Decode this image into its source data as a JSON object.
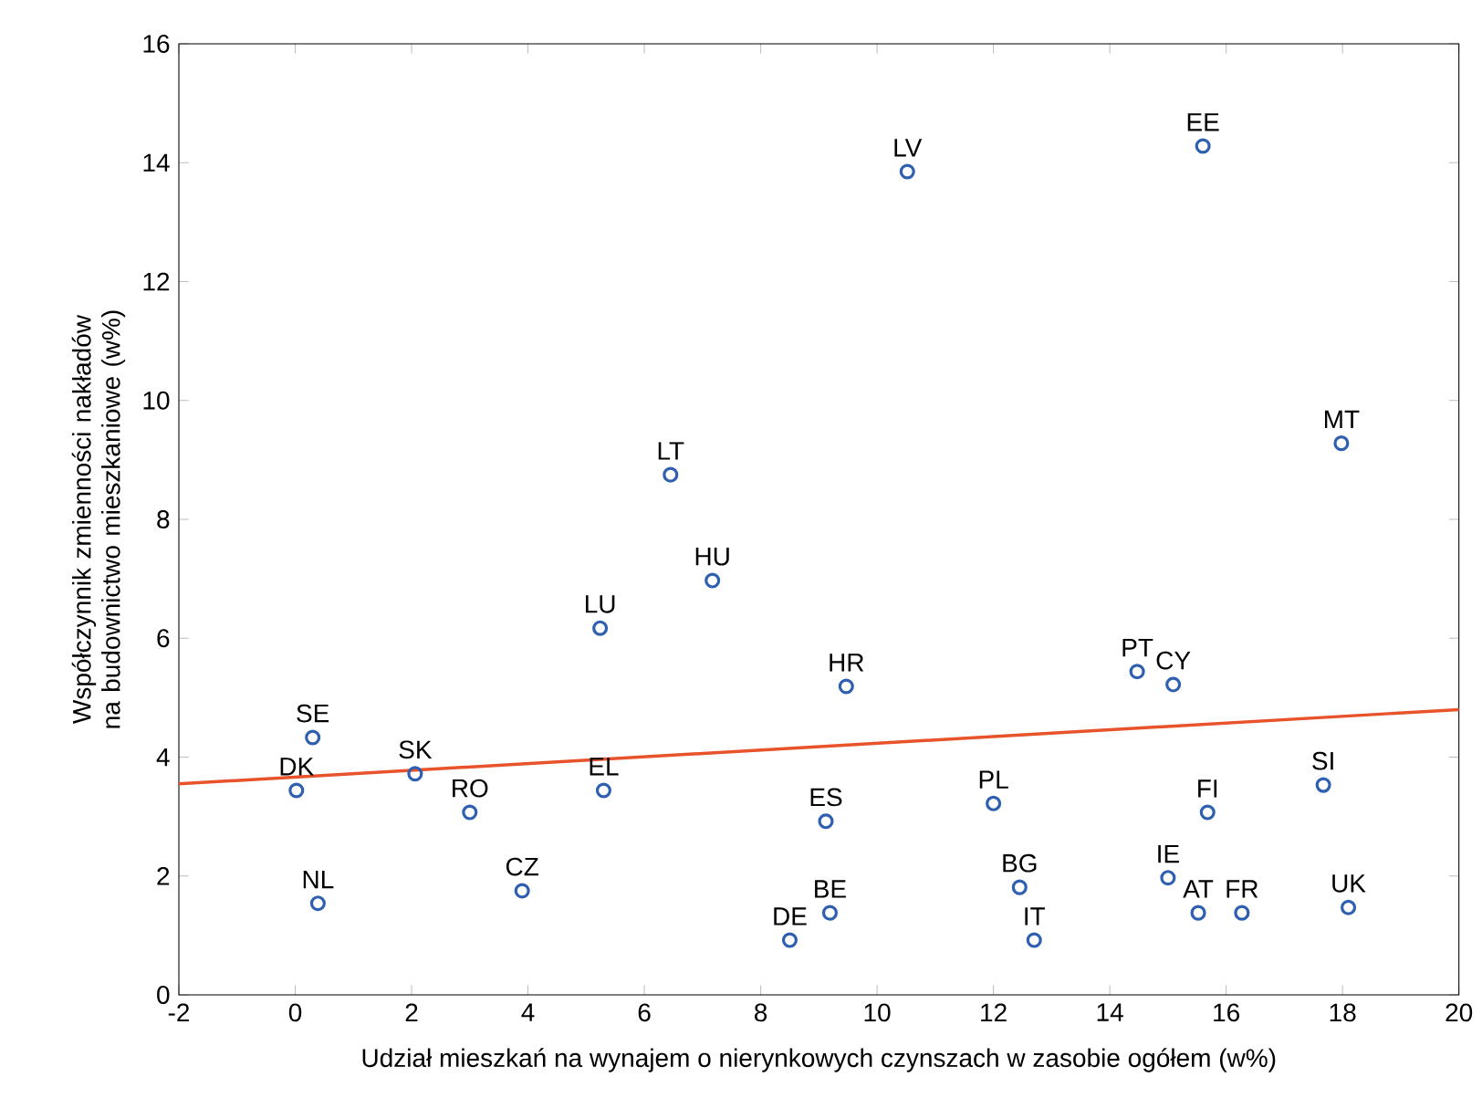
{
  "chart_data": {
    "type": "scatter",
    "xlabel": "Udział mieszkań na wynajem o nierynkowych czynszach w zasobie ogółem (w%)",
    "ylabel": "Współczynnik zmienności nakładów na budownictwo mieszkaniowe (w%)",
    "xlim": [
      -2,
      20
    ],
    "xticks": [
      -2,
      0,
      2,
      4,
      6,
      8,
      10,
      12,
      14,
      16,
      18,
      20
    ],
    "ylim": [
      0,
      16
    ],
    "yticks": [
      0,
      2,
      4,
      6,
      8,
      10,
      12,
      14,
      16
    ],
    "marker": "circle",
    "series": [
      {
        "color": "#2e5fb0",
        "x": [
          0.3,
          0.02,
          0.39,
          2.06,
          3.0,
          3.9,
          5.24,
          5.3,
          6.45,
          7.17,
          8.5,
          9.19,
          9.12,
          9.47,
          10.52,
          12.0,
          12.45,
          12.7,
          14.47,
          15.09,
          15.0,
          15.52,
          15.68,
          15.6,
          16.27,
          17.67,
          17.98,
          18.1
        ],
        "values": [
          4.33,
          3.44,
          1.54,
          3.72,
          3.07,
          1.75,
          6.17,
          3.44,
          8.75,
          6.97,
          0.92,
          1.38,
          2.92,
          5.19,
          13.85,
          3.22,
          1.81,
          0.92,
          5.44,
          5.22,
          1.97,
          1.38,
          3.07,
          14.28,
          1.38,
          3.53,
          9.28,
          1.47
        ]
      },
      {
        "type": "line",
        "marker": "none",
        "color": "#e8532b",
        "x": [
          -2,
          20
        ],
        "values": [
          3.55,
          4.8
        ]
      }
    ],
    "annotations": [
      {
        "text": "SE",
        "x": 0.3,
        "y": 4.33
      },
      {
        "text": "DK",
        "x": 0.02,
        "y": 3.44
      },
      {
        "text": "NL",
        "x": 0.39,
        "y": 1.54
      },
      {
        "text": "SK",
        "x": 2.06,
        "y": 3.72
      },
      {
        "text": "RO",
        "x": 3.0,
        "y": 3.07
      },
      {
        "text": "CZ",
        "x": 3.9,
        "y": 1.75
      },
      {
        "text": "LU",
        "x": 5.24,
        "y": 6.17
      },
      {
        "text": "EL",
        "x": 5.3,
        "y": 3.44
      },
      {
        "text": "LT",
        "x": 6.45,
        "y": 8.75
      },
      {
        "text": "HU",
        "x": 7.17,
        "y": 6.97
      },
      {
        "text": "DE",
        "x": 8.5,
        "y": 0.92
      },
      {
        "text": "BE",
        "x": 9.19,
        "y": 1.38
      },
      {
        "text": "ES",
        "x": 9.12,
        "y": 2.92
      },
      {
        "text": "HR",
        "x": 9.47,
        "y": 5.19
      },
      {
        "text": "LV",
        "x": 10.52,
        "y": 13.85
      },
      {
        "text": "PL",
        "x": 12.0,
        "y": 3.22
      },
      {
        "text": "BG",
        "x": 12.45,
        "y": 1.81
      },
      {
        "text": "IT",
        "x": 12.7,
        "y": 0.92
      },
      {
        "text": "PT",
        "x": 14.47,
        "y": 5.44
      },
      {
        "text": "CY",
        "x": 15.09,
        "y": 5.22
      },
      {
        "text": "IE",
        "x": 15.0,
        "y": 1.97
      },
      {
        "text": "AT",
        "x": 15.52,
        "y": 1.38
      },
      {
        "text": "FI",
        "x": 15.68,
        "y": 3.07
      },
      {
        "text": "EE",
        "x": 15.6,
        "y": 14.28
      },
      {
        "text": "FR",
        "x": 16.27,
        "y": 1.38
      },
      {
        "text": "SI",
        "x": 17.67,
        "y": 3.53
      },
      {
        "text": "MT",
        "x": 17.98,
        "y": 9.28
      },
      {
        "text": "UK",
        "x": 18.1,
        "y": 1.47
      }
    ]
  }
}
